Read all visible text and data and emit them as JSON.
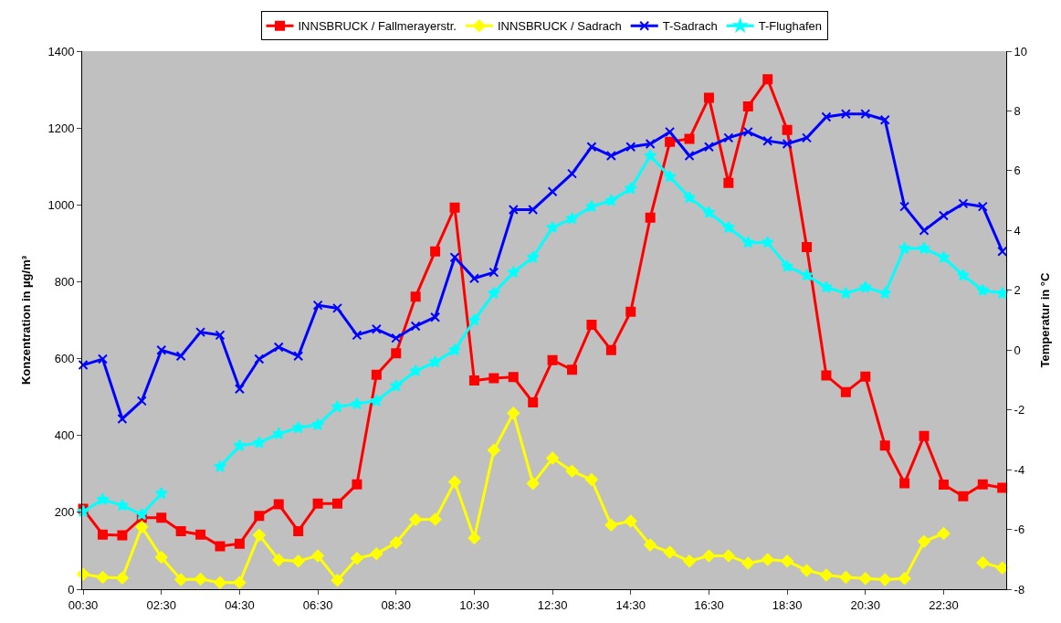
{
  "chart_data": {
    "type": "line",
    "xlabel": null,
    "ylabel": "Konzentration in µg/m³",
    "y2label": "Temperatur in °C",
    "categories": [
      "00:30",
      null,
      null,
      null,
      "02:30",
      null,
      null,
      null,
      "04:30",
      null,
      null,
      null,
      "06:30",
      null,
      null,
      null,
      "08:30",
      null,
      null,
      null,
      "10:30",
      null,
      null,
      null,
      "12:30",
      null,
      null,
      null,
      "14:30",
      null,
      null,
      null,
      "16:30",
      null,
      null,
      null,
      "18:30",
      null,
      null,
      null,
      "20:30",
      null,
      null,
      null,
      "22:30",
      null,
      null,
      null
    ],
    "series": [
      {
        "name": "INNSBRUCK / Fallmerayerstr.",
        "color": "#ff0000",
        "marker": "square",
        "values": [
          209,
          142,
          140,
          186,
          186,
          151,
          142,
          112,
          118,
          191,
          221,
          151,
          223,
          223,
          273,
          558,
          614,
          761,
          879,
          993,
          543,
          549,
          552,
          486,
          596,
          571,
          688,
          622,
          722,
          967,
          1164,
          1172,
          1279,
          1057,
          1256,
          1327,
          1195,
          890,
          556,
          513,
          553,
          374,
          276,
          399,
          272,
          242,
          273,
          264
        ]
      },
      {
        "name": "INNSBRUCK / Sadrach",
        "color": "#ffff00",
        "marker": "diamond",
        "values": [
          39,
          31,
          29,
          162,
          83,
          25,
          26,
          17,
          17,
          141,
          76,
          73,
          87,
          23,
          80,
          92,
          121,
          181,
          182,
          279,
          133,
          362,
          458,
          275,
          341,
          307,
          285,
          167,
          177,
          115,
          96,
          73,
          87,
          87,
          68,
          77,
          73,
          49,
          37,
          31,
          28,
          25,
          28,
          124,
          145,
          null,
          69,
          55
        ]
      },
      {
        "name": "T-Sadrach",
        "color": "#0000ff",
        "marker": "cross",
        "axis": "y2",
        "values": [
          -0.5,
          -0.3,
          -2.3,
          -1.7,
          0.0,
          -0.2,
          0.6,
          0.5,
          -1.3,
          -0.3,
          0.1,
          -0.2,
          1.5,
          1.4,
          0.5,
          0.7,
          0.4,
          0.8,
          1.1,
          3.1,
          2.4,
          2.6,
          4.7,
          4.7,
          5.3,
          5.9,
          6.8,
          6.5,
          6.8,
          6.9,
          7.3,
          6.5,
          6.8,
          7.1,
          7.3,
          7.0,
          6.9,
          7.1,
          7.8,
          7.9,
          7.9,
          7.7,
          4.8,
          4.0,
          4.5,
          4.9,
          4.8,
          3.3
        ]
      },
      {
        "name": "T-Flughafen",
        "color": "#00ffff",
        "marker": "star",
        "axis": "y2",
        "values": [
          -5.4,
          -5.0,
          -5.2,
          -5.5,
          -4.8,
          null,
          null,
          -3.9,
          -3.2,
          -3.1,
          -2.8,
          -2.6,
          -2.5,
          -1.9,
          -1.8,
          -1.7,
          -1.2,
          -0.7,
          -0.4,
          0.0,
          1.0,
          1.9,
          2.6,
          3.1,
          4.1,
          4.4,
          4.8,
          5.0,
          5.4,
          6.5,
          5.8,
          5.1,
          4.6,
          4.1,
          3.6,
          3.6,
          2.8,
          2.5,
          2.1,
          1.9,
          2.1,
          1.9,
          3.4,
          3.4,
          3.1,
          2.5,
          2.0,
          1.9
        ]
      }
    ],
    "ylim": [
      0,
      1400
    ],
    "yticks": [
      0,
      200,
      400,
      600,
      800,
      1000,
      1200,
      1400
    ],
    "y2lim": [
      -8,
      10
    ],
    "y2ticks": [
      -8,
      -6,
      -4,
      -2,
      0,
      2,
      4,
      6,
      8,
      10
    ],
    "grid": false,
    "legend": "top",
    "line_style": "solid"
  }
}
